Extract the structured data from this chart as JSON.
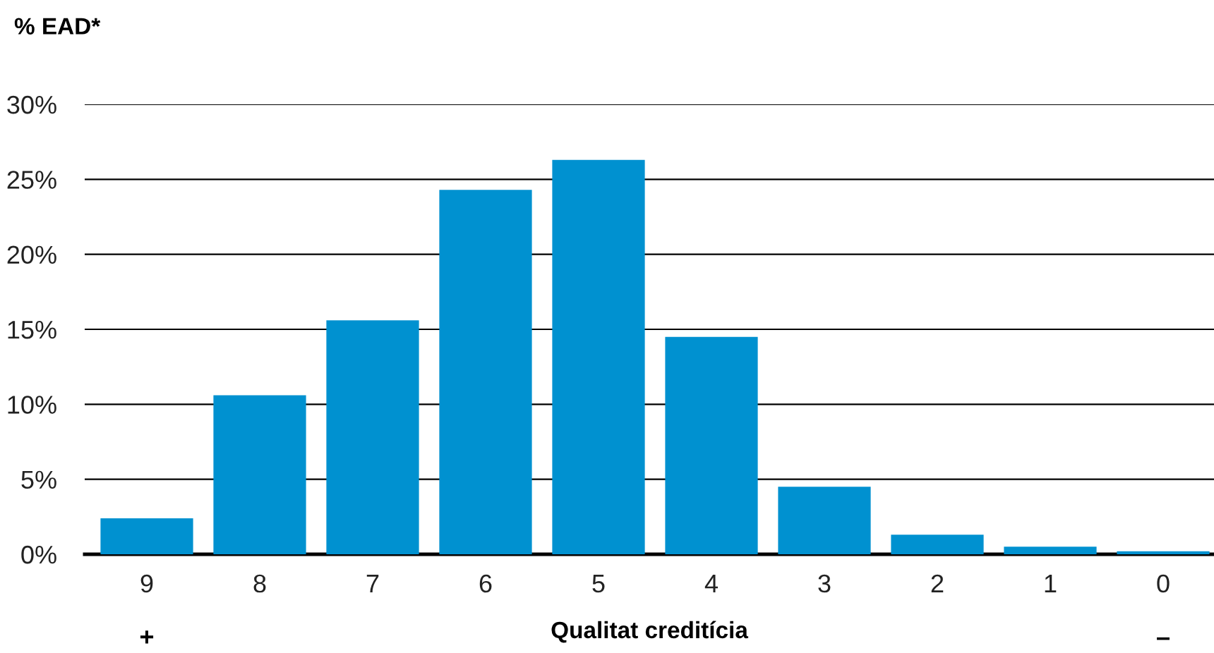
{
  "chart_data": {
    "type": "bar",
    "ylabel": "% EAD*",
    "xlabel": "Qualitat creditícia",
    "categories": [
      "9",
      "8",
      "7",
      "6",
      "5",
      "4",
      "3",
      "2",
      "1",
      "0"
    ],
    "values": [
      2.4,
      10.6,
      15.6,
      24.3,
      26.3,
      14.5,
      4.5,
      1.3,
      0.5,
      0.2
    ],
    "color": "#0091d0",
    "ylim": [
      0,
      30
    ],
    "yticks": [
      {
        "value": 0,
        "label": "0%"
      },
      {
        "value": 5,
        "label": "5%"
      },
      {
        "value": 10,
        "label": "10%"
      },
      {
        "value": 15,
        "label": "15%"
      },
      {
        "value": 20,
        "label": "20%"
      },
      {
        "value": 25,
        "label": "25%"
      },
      {
        "value": 30,
        "label": "30%"
      }
    ],
    "grid": "y",
    "annotations": [
      "+",
      "–"
    ]
  }
}
